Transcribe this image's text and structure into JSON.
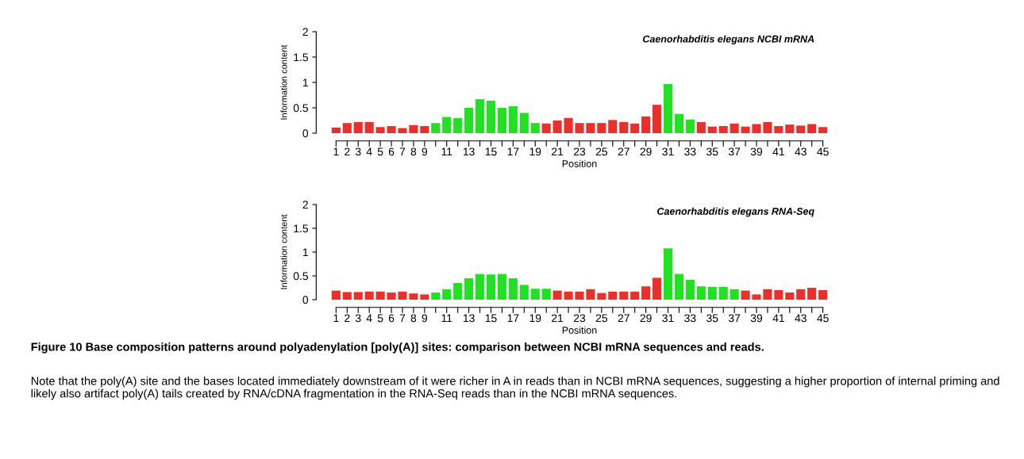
{
  "chart_data": [
    {
      "type": "bar",
      "title": "Caenorhabditis elegans NCBI mRNA",
      "xlabel": "Position",
      "ylabel": "Information content",
      "categories": [
        "1",
        "2",
        "3",
        "4",
        "5",
        "6",
        "7",
        "8",
        "9",
        null,
        "11",
        null,
        "13",
        null,
        "15",
        null,
        "17",
        null,
        "19",
        null,
        "21",
        null,
        "23",
        null,
        "25",
        null,
        "27",
        null,
        "29",
        null,
        "31",
        null,
        "33",
        null,
        "35",
        null,
        "37",
        null,
        "39",
        null,
        "41",
        null,
        "43",
        null,
        "45"
      ],
      "values": [
        0.11,
        0.2,
        0.22,
        0.22,
        0.12,
        0.14,
        0.1,
        0.16,
        0.14,
        0.2,
        0.32,
        0.3,
        0.5,
        0.67,
        0.64,
        0.5,
        0.53,
        0.4,
        0.2,
        0.19,
        0.25,
        0.3,
        0.2,
        0.2,
        0.2,
        0.26,
        0.22,
        0.19,
        0.33,
        0.56,
        0.97,
        0.38,
        0.27,
        0.22,
        0.13,
        0.14,
        0.19,
        0.13,
        0.18,
        0.22,
        0.14,
        0.17,
        0.15,
        0.18,
        0.12
      ],
      "colors": [
        "#e8302c",
        "#e8302c",
        "#e8302c",
        "#e8302c",
        "#e8302c",
        "#e8302c",
        "#e8302c",
        "#e8302c",
        "#e8302c",
        "#22e022",
        "#22e022",
        "#22e022",
        "#22e022",
        "#22e022",
        "#22e022",
        "#22e022",
        "#22e022",
        "#22e022",
        "#22e022",
        "#e8302c",
        "#e8302c",
        "#e8302c",
        "#e8302c",
        "#e8302c",
        "#e8302c",
        "#e8302c",
        "#e8302c",
        "#e8302c",
        "#e8302c",
        "#e8302c",
        "#22e022",
        "#22e022",
        "#22e022",
        "#e8302c",
        "#e8302c",
        "#e8302c",
        "#e8302c",
        "#e8302c",
        "#e8302c",
        "#e8302c",
        "#e8302c",
        "#e8302c",
        "#e8302c",
        "#e8302c",
        "#e8302c"
      ],
      "ylim": [
        0,
        2
      ],
      "yticks": [
        0,
        0.5,
        1,
        1.5,
        2
      ],
      "grid": false
    },
    {
      "type": "bar",
      "title": "Caenorhabditis elegans RNA-Seq",
      "xlabel": "Position",
      "ylabel": "Information content",
      "categories": [
        "1",
        "2",
        "3",
        "4",
        "5",
        "6",
        "7",
        "8",
        "9",
        null,
        "11",
        null,
        "13",
        null,
        "15",
        null,
        "17",
        null,
        "19",
        null,
        "21",
        null,
        "23",
        null,
        "25",
        null,
        "27",
        null,
        "29",
        null,
        "31",
        null,
        "33",
        null,
        "35",
        null,
        "37",
        null,
        "39",
        null,
        "41",
        null,
        "43",
        null,
        "45"
      ],
      "values": [
        0.19,
        0.16,
        0.16,
        0.17,
        0.17,
        0.15,
        0.17,
        0.13,
        0.11,
        0.15,
        0.22,
        0.35,
        0.45,
        0.54,
        0.53,
        0.54,
        0.45,
        0.31,
        0.23,
        0.23,
        0.19,
        0.17,
        0.17,
        0.22,
        0.14,
        0.17,
        0.17,
        0.17,
        0.28,
        0.46,
        1.08,
        0.54,
        0.42,
        0.28,
        0.27,
        0.27,
        0.22,
        0.19,
        0.11,
        0.22,
        0.2,
        0.15,
        0.22,
        0.25,
        0.2
      ],
      "colors": [
        "#e8302c",
        "#e8302c",
        "#e8302c",
        "#e8302c",
        "#e8302c",
        "#e8302c",
        "#e8302c",
        "#e8302c",
        "#e8302c",
        "#22e022",
        "#22e022",
        "#22e022",
        "#22e022",
        "#22e022",
        "#22e022",
        "#22e022",
        "#22e022",
        "#22e022",
        "#22e022",
        "#22e022",
        "#e8302c",
        "#e8302c",
        "#e8302c",
        "#e8302c",
        "#e8302c",
        "#e8302c",
        "#e8302c",
        "#e8302c",
        "#e8302c",
        "#e8302c",
        "#22e022",
        "#22e022",
        "#22e022",
        "#22e022",
        "#22e022",
        "#22e022",
        "#22e022",
        "#e8302c",
        "#e8302c",
        "#e8302c",
        "#e8302c",
        "#e8302c",
        "#e8302c",
        "#e8302c",
        "#e8302c"
      ],
      "ylim": [
        0,
        2
      ],
      "yticks": [
        0,
        0.5,
        1,
        1.5,
        2
      ],
      "grid": false,
      "annotations": [
        "Figure 10 Base composition patterns around polyadenylation [poly(A)] sites: comparison between NCBI mRNA sequences and reads.",
        "Note that the poly(A) site and the bases located immediately downstream of it were richer in A in reads than in NCBI mRNA sequences, suggesting a higher proportion of internal priming and likely also artifact poly(A) tails created by RNA/cDNA fragmentation in the RNA-Seq reads than in the NCBI mRNA sequences."
      ]
    }
  ]
}
